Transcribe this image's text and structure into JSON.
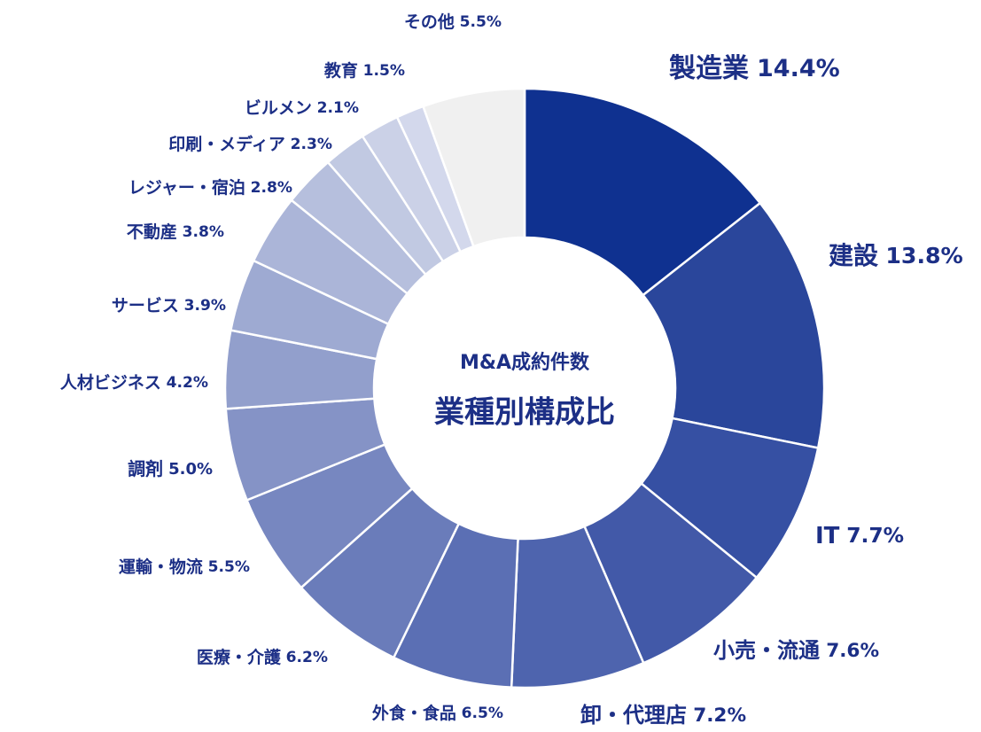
{
  "chart_data": {
    "type": "donut",
    "title": "業種別構成比",
    "subtitle": "M&A成約件数",
    "categories": [
      "製造業",
      "建設",
      "IT",
      "小売・流通",
      "卸・代理店",
      "外食・食品",
      "医療・介護",
      "運輸・物流",
      "調剤",
      "人材ビジネス",
      "サービス",
      "不動産",
      "レジャー・宿泊",
      "印刷・メディア",
      "ビルメン",
      "教育",
      "その他"
    ],
    "values": [
      14.4,
      13.8,
      7.7,
      7.6,
      7.2,
      6.5,
      6.2,
      5.5,
      5.0,
      4.2,
      3.9,
      3.8,
      2.8,
      2.3,
      2.1,
      1.5,
      5.5
    ],
    "value_labels": [
      "14.4%",
      "13.8%",
      "7.7%",
      "7.6%",
      "7.2%",
      "6.5%",
      "6.2%",
      "5.5%",
      "5.0%",
      "4.2%",
      "3.9%",
      "3.8%",
      "2.8%",
      "2.3%",
      "2.1%",
      "1.5%",
      "5.5%"
    ],
    "colors": [
      "#0f3190",
      "#2a469b",
      "#3650a3",
      "#4259a8",
      "#4e64ae",
      "#5b6fb4",
      "#6a7cba",
      "#7787c0",
      "#8593c6",
      "#929fcc",
      "#9eaad2",
      "#abb5d8",
      "#b6bfdd",
      "#c1c9e2",
      "#cbd1e7",
      "#d3d8ec",
      "#f0f0f0"
    ]
  }
}
